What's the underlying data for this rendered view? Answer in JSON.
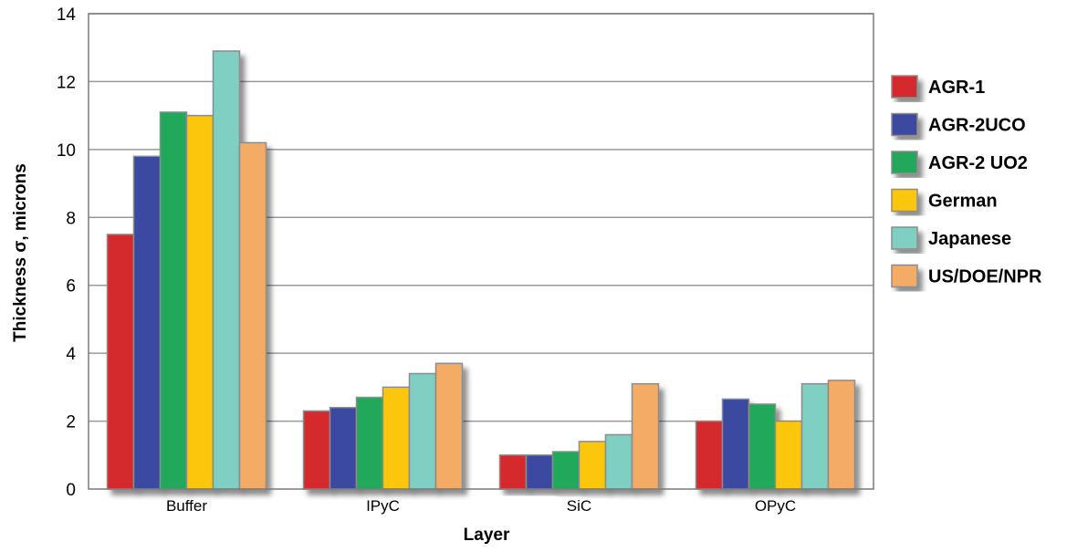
{
  "chart_data": {
    "type": "bar",
    "title": "",
    "xlabel": "Layer",
    "ylabel": "Thickness σ, microns",
    "ylim": [
      0,
      14
    ],
    "yticks": [
      0,
      2,
      4,
      6,
      8,
      10,
      12,
      14
    ],
    "grid": true,
    "legend_position": "right",
    "categories": [
      "Buffer",
      "IPyC",
      "SiC",
      "OPyC"
    ],
    "series": [
      {
        "name": "AGR-1",
        "color": "#d42a2f",
        "values": [
          7.5,
          2.3,
          1.0,
          2.0
        ]
      },
      {
        "name": "AGR-2UCO",
        "color": "#3b4aa0",
        "values": [
          9.8,
          2.4,
          1.0,
          2.65
        ]
      },
      {
        "name": "AGR-2 UO2",
        "color": "#20a85a",
        "values": [
          11.1,
          2.7,
          1.1,
          2.5
        ]
      },
      {
        "name": "German",
        "color": "#fcc60e",
        "values": [
          11.0,
          3.0,
          1.4,
          2.0
        ]
      },
      {
        "name": "Japanese",
        "color": "#7fcfc2",
        "values": [
          12.9,
          3.4,
          1.6,
          3.1
        ]
      },
      {
        "name": "US/DOE/NPR",
        "color": "#f3ab66",
        "values": [
          10.2,
          3.7,
          3.1,
          3.2
        ]
      }
    ]
  }
}
